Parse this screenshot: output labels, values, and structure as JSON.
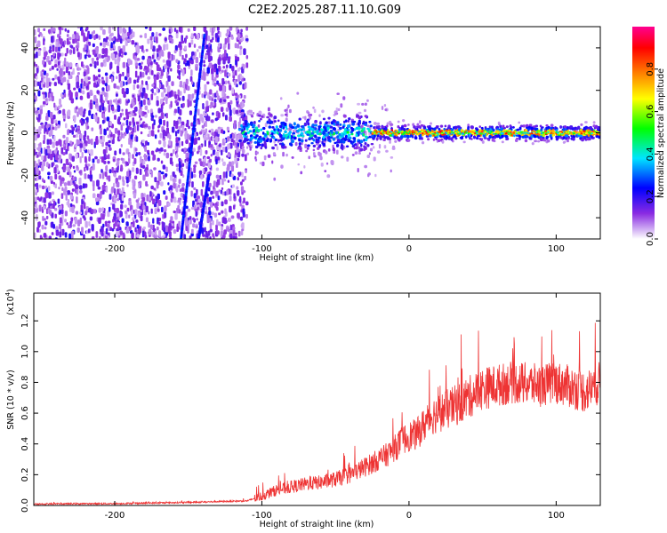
{
  "title": "C2E2.2025.287.11.10.G09",
  "chart_data": [
    {
      "type": "heatmap",
      "xlabel": "Height of straight line (km)",
      "ylabel": "Frequency (Hz)",
      "xlim": [
        -255,
        130
      ],
      "ylim": [
        -50,
        50
      ],
      "xticks": [
        -200,
        -100,
        0,
        100
      ],
      "yticks": [
        -40,
        -20,
        0,
        20,
        40
      ],
      "colorbar": {
        "label": "Normalized spectral amplitude",
        "range": [
          0,
          1
        ],
        "ticks": [
          0.0,
          0.2,
          0.4,
          0.6,
          0.8
        ],
        "colors": [
          "#ffffff",
          "#8a2be2",
          "#0000ff",
          "#00e5ff",
          "#00ff00",
          "#ffff00",
          "#ff8000",
          "#ff0000",
          "#ff0090"
        ]
      }
    },
    {
      "type": "line",
      "xlabel": "Height of straight line (km)",
      "ylabel": "SNR (10 * v/v)",
      "y_multiplier": "(x10",
      "y_multiplier_exp": "4",
      "y_multiplier_close": ")",
      "xlim": [
        -255,
        130
      ],
      "ylim": [
        0,
        1.38
      ],
      "xticks": [
        -200,
        -100,
        0,
        100
      ],
      "yticks": [
        0.0,
        0.2,
        0.4,
        0.6,
        0.8,
        1.0,
        1.2
      ],
      "color": "#ee3333",
      "x": [
        -255,
        -200,
        -150,
        -130,
        -110,
        -100,
        -90,
        -80,
        -70,
        -60,
        -50,
        -40,
        -30,
        -20,
        -15,
        -10,
        -5,
        0,
        5,
        10,
        15,
        20,
        30,
        40,
        50,
        60,
        70,
        80,
        90,
        100,
        110,
        120,
        130
      ],
      "y": [
        0.01,
        0.012,
        0.02,
        0.025,
        0.03,
        0.06,
        0.1,
        0.12,
        0.14,
        0.15,
        0.17,
        0.2,
        0.25,
        0.3,
        0.33,
        0.37,
        0.42,
        0.45,
        0.46,
        0.52,
        0.58,
        0.6,
        0.64,
        0.7,
        0.76,
        0.78,
        0.8,
        0.79,
        0.78,
        0.8,
        0.77,
        0.74,
        0.8
      ]
    }
  ]
}
